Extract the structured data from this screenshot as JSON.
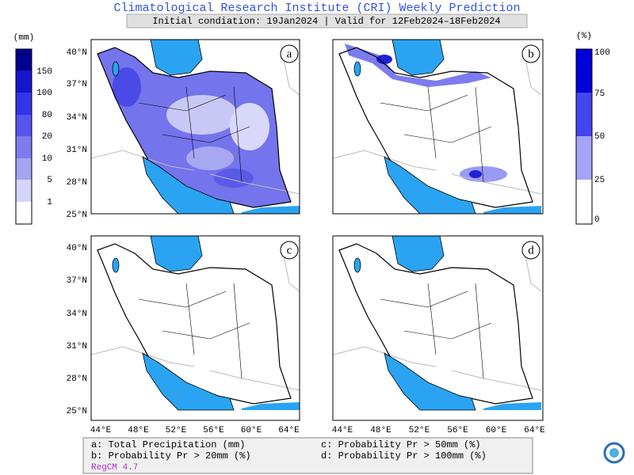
{
  "title": "Climatological Research Institute (CRI) Weekly Prediction",
  "subtitle": "Initial condiation: 19Jan2024 | Valid for 12Feb2024–18Feb2024",
  "left_colorbar": {
    "unit": "(mm)",
    "labels": [
      "150",
      "100",
      "80",
      "20",
      "10",
      "5",
      "1"
    ]
  },
  "right_colorbar": {
    "unit": "(%)",
    "labels": [
      "100",
      "75",
      "50",
      "25",
      "0"
    ]
  },
  "panels": [
    {
      "label": "a"
    },
    {
      "label": "b"
    },
    {
      "label": "c"
    },
    {
      "label": "d"
    }
  ],
  "lat_labels": [
    "40°N",
    "37°N",
    "34°N",
    "31°N",
    "28°N",
    "25°N"
  ],
  "lon_labels": [
    "44°E",
    "48°E",
    "52°E",
    "56°E",
    "60°E",
    "64°E"
  ],
  "legend": [
    "a: Total Precipitation (mm)",
    "c: Probability Pr > 50mm (%)",
    "b: Probability Pr > 20mm (%)",
    "d: Probability Pr > 100mm (%)"
  ],
  "model": "RegCM 4.7"
}
